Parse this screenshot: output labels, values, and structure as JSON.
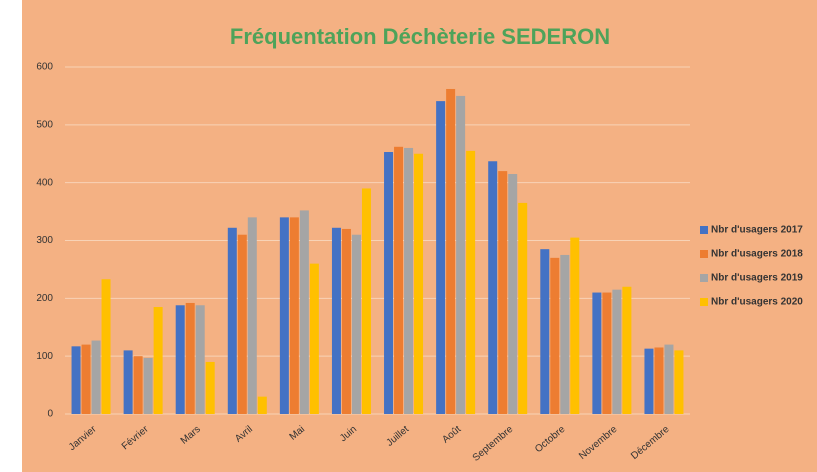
{
  "chart_data": {
    "type": "bar",
    "title": "Fréquentation Déchèterie SEDERON",
    "categories": [
      "Janvier",
      "Février",
      "Mars",
      "Avril",
      "Mai",
      "Juin",
      "Juillet",
      "Août",
      "Septembre",
      "Octobre",
      "Novembre",
      "Décembre"
    ],
    "series": [
      {
        "name": "Nbr d'usagers 2017",
        "color": "#4472c4",
        "values": [
          117,
          110,
          188,
          322,
          340,
          322,
          453,
          541,
          437,
          285,
          210,
          113
        ]
      },
      {
        "name": "Nbr d'usagers 2018",
        "color": "#ed7d31",
        "values": [
          120,
          100,
          192,
          310,
          340,
          320,
          462,
          562,
          420,
          270,
          210,
          115
        ]
      },
      {
        "name": "Nbr d'usagers 2019",
        "color": "#a5a5a5",
        "values": [
          127,
          97,
          188,
          340,
          352,
          310,
          460,
          550,
          415,
          275,
          215,
          120
        ]
      },
      {
        "name": "Nbr d'usagers 2020",
        "color": "#ffc000",
        "values": [
          233,
          185,
          90,
          30,
          260,
          390,
          450,
          455,
          365,
          305,
          220,
          110
        ]
      }
    ],
    "ylim": [
      0,
      600
    ],
    "yticks": [
      0,
      100,
      200,
      300,
      400,
      500,
      600
    ],
    "grid": true,
    "legend": "right"
  }
}
